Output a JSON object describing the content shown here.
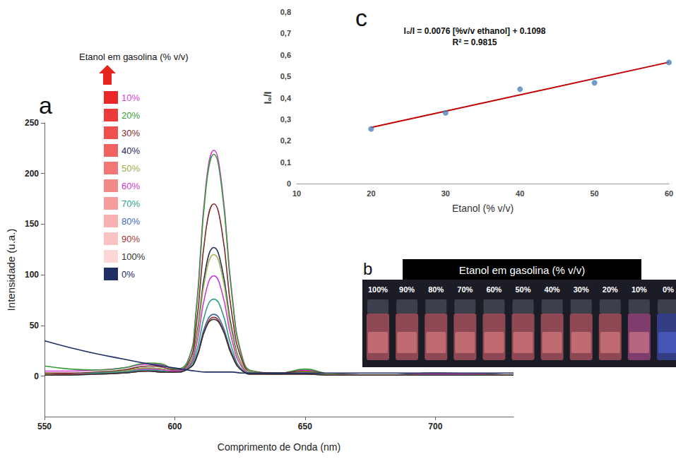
{
  "chart_data": [
    {
      "type": "line",
      "title": "a",
      "annotations": [
        "Etanol em gasolina (% v/v)"
      ],
      "x_label": "Comprimento de Onda (nm)",
      "y_label": "Intensidade (u.a.)",
      "x": [
        550,
        560,
        570,
        580,
        590,
        595,
        600,
        605,
        608,
        612,
        615,
        618,
        622,
        626,
        630,
        640,
        650,
        660,
        680,
        700,
        730
      ],
      "series": [
        {
          "name": "10%",
          "color": "#d63fd6",
          "values": [
            5,
            5,
            6,
            8,
            12,
            11,
            7,
            15,
            60,
            190,
            223,
            190,
            80,
            18,
            5,
            3,
            6,
            2,
            1,
            3,
            1
          ]
        },
        {
          "name": "20%",
          "color": "#3a9a3a",
          "values": [
            10,
            7,
            6,
            8,
            13,
            12,
            7,
            15,
            58,
            186,
            219,
            186,
            78,
            17,
            5,
            3,
            7,
            2,
            1,
            3,
            1
          ]
        },
        {
          "name": "30%",
          "color": "#7a2a2a",
          "values": [
            3,
            3,
            4,
            6,
            10,
            9,
            6,
            12,
            45,
            145,
            170,
            145,
            60,
            14,
            4,
            3,
            5,
            2,
            1,
            2,
            1
          ]
        },
        {
          "name": "40%",
          "color": "#1e2a5a",
          "values": [
            2,
            2,
            3,
            5,
            8,
            7,
            5,
            10,
            34,
            108,
            127,
            108,
            45,
            10,
            4,
            2,
            4,
            2,
            1,
            2,
            1
          ]
        },
        {
          "name": "50%",
          "color": "#9fb04a",
          "values": [
            2,
            2,
            3,
            5,
            8,
            7,
            5,
            10,
            32,
            102,
            120,
            102,
            42,
            10,
            4,
            2,
            4,
            2,
            1,
            2,
            1
          ]
        },
        {
          "name": "60%",
          "color": "#c83cc8",
          "values": [
            1,
            2,
            3,
            4,
            7,
            6,
            5,
            9,
            27,
            84,
            99,
            84,
            35,
            8,
            3,
            2,
            3,
            1,
            1,
            2,
            1
          ]
        },
        {
          "name": "70%",
          "color": "#2f9d8a",
          "values": [
            1,
            2,
            3,
            4,
            6,
            5,
            4,
            8,
            21,
            65,
            76,
            65,
            27,
            6,
            3,
            2,
            3,
            1,
            1,
            1,
            1
          ]
        },
        {
          "name": "80%",
          "color": "#3c6cb0",
          "values": [
            1,
            2,
            2,
            3,
            5,
            4,
            4,
            7,
            17,
            52,
            61,
            52,
            22,
            5,
            2,
            2,
            2,
            1,
            1,
            1,
            1
          ]
        },
        {
          "name": "90%",
          "color": "#a33a3a",
          "values": [
            1,
            2,
            2,
            3,
            5,
            4,
            4,
            7,
            16,
            49,
            58,
            49,
            21,
            5,
            2,
            2,
            2,
            1,
            1,
            1,
            1
          ]
        },
        {
          "name": "100%",
          "color": "#333333",
          "values": [
            1,
            1,
            2,
            3,
            5,
            4,
            4,
            7,
            16,
            48,
            56,
            48,
            20,
            5,
            2,
            2,
            2,
            1,
            1,
            1,
            1
          ]
        },
        {
          "name": "0%",
          "color": "#1f2f66",
          "values": [
            35,
            28,
            22,
            17,
            12,
            10,
            8,
            6,
            5,
            4,
            4,
            4,
            4,
            3,
            3,
            3,
            3,
            3,
            3,
            3,
            3
          ]
        }
      ],
      "xlim": [
        550,
        730
      ],
      "xticks": [
        550,
        600,
        650,
        700
      ],
      "ylim": [
        -40,
        250
      ],
      "yticks": [
        0,
        50,
        100,
        150,
        200,
        250
      ],
      "grid": false,
      "legend": "upper left"
    },
    {
      "type": "scatter",
      "title": "c",
      "annotations": [
        "I₀/I = 0.0076 [%v/v ethanol] + 0.1098",
        "R² = 0.9815"
      ],
      "x_label": "Etanol (% v/v)",
      "y_label": "I₀/I",
      "x": [
        20,
        30,
        40,
        50,
        60
      ],
      "values": [
        0.255,
        0.33,
        0.44,
        0.47,
        0.565
      ],
      "color": "#4f81bd",
      "marker": "circle",
      "fit": {
        "x": [
          20,
          60
        ],
        "values": [
          0.2618,
          0.5658
        ],
        "color": "#c00000"
      },
      "xlim": [
        10,
        60
      ],
      "xticks": [
        10,
        20,
        30,
        40,
        50,
        60
      ],
      "ylim": [
        0,
        0.8
      ],
      "yticks": [
        0,
        {
          "value": 0.1,
          "label": "0,1"
        },
        {
          "value": 0.2,
          "label": "0,2"
        },
        {
          "value": 0.3,
          "label": "0,3"
        },
        {
          "value": 0.4,
          "label": "0,4"
        },
        {
          "value": 0.5,
          "label": "0,5"
        },
        {
          "value": 0.6,
          "label": "0,6"
        },
        {
          "value": 0.7,
          "label": "0,7"
        },
        {
          "value": 0.8,
          "label": "0,8"
        }
      ],
      "grid": false
    }
  ],
  "photo": {
    "letter": "b",
    "title": "Etanol em gasolina (% v/v)",
    "labels": [
      "100%",
      "90%",
      "80%",
      "70%",
      "60%",
      "50%",
      "40%",
      "30%",
      "20%",
      "10%",
      "0%"
    ]
  }
}
